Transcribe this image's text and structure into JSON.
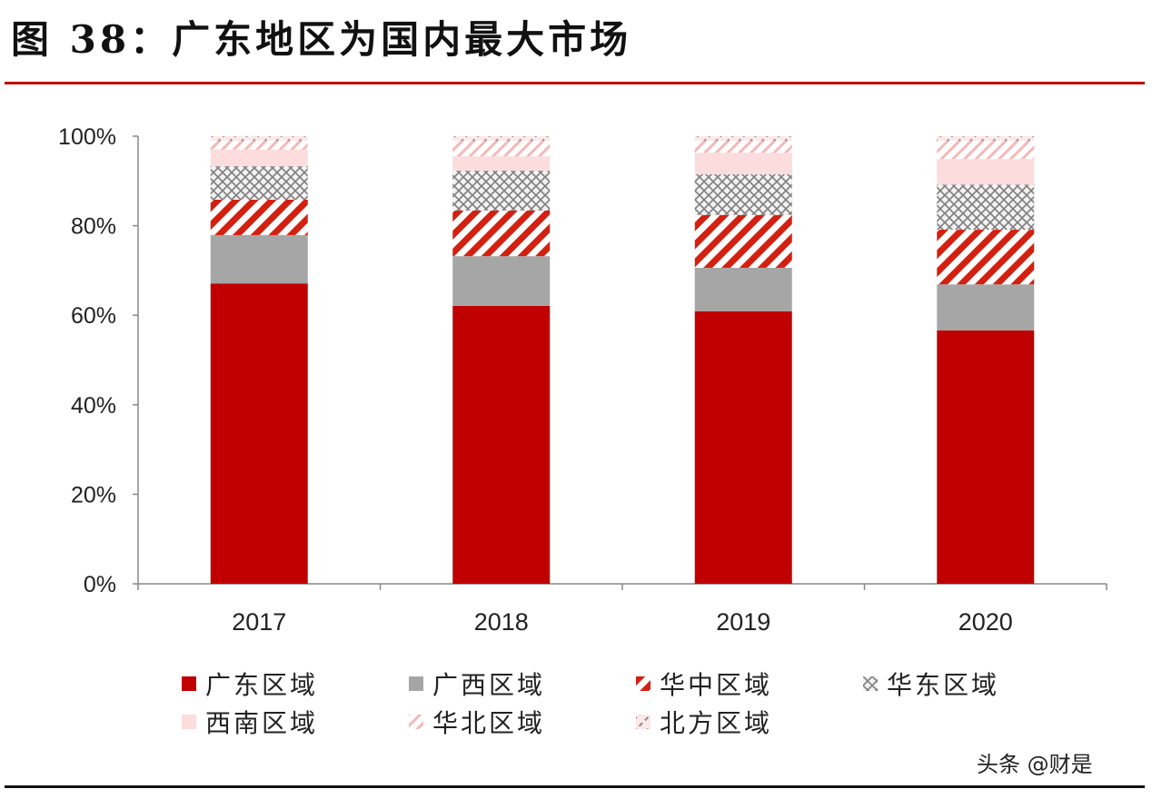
{
  "title": "图 38：广东地区为国内最大市场",
  "watermark": "头条 @财是",
  "chart_data": {
    "type": "bar",
    "stacked": true,
    "categories": [
      "2017",
      "2018",
      "2019",
      "2020"
    ],
    "series": [
      {
        "name": "广东区域",
        "values": [
          67.1,
          62.1,
          60.9,
          56.6
        ],
        "color": "#c00000",
        "pattern": "solid"
      },
      {
        "name": "广西区域",
        "values": [
          10.8,
          11.1,
          9.7,
          10.3
        ],
        "color": "#a6a6a6",
        "pattern": "solid"
      },
      {
        "name": "华中区域",
        "values": [
          7.9,
          10.2,
          11.8,
          12.2
        ],
        "color": "#d42010",
        "pattern": "wide-diagonal"
      },
      {
        "name": "华东区域",
        "values": [
          7.5,
          8.9,
          9.1,
          10.1
        ],
        "color": "#808080",
        "pattern": "diamond-crosshatch"
      },
      {
        "name": "西南区域",
        "values": [
          3.7,
          3.2,
          4.8,
          5.7
        ],
        "color": "#fcdcdc",
        "pattern": "solid"
      },
      {
        "name": "华北区域",
        "values": [
          2.0,
          3.5,
          2.7,
          4.1
        ],
        "color": "#f4b8b8",
        "pattern": "light-diagonal"
      },
      {
        "name": "北方区域",
        "values": [
          1.0,
          1.0,
          1.0,
          1.0
        ],
        "color": "#808080",
        "pattern": "dashed-diagonal"
      }
    ],
    "yticks": [
      "0%",
      "20%",
      "40%",
      "60%",
      "80%",
      "100%"
    ],
    "ylim": [
      0,
      100
    ],
    "xlabel": "",
    "ylabel": "",
    "grid": false,
    "legend": "bottom"
  }
}
